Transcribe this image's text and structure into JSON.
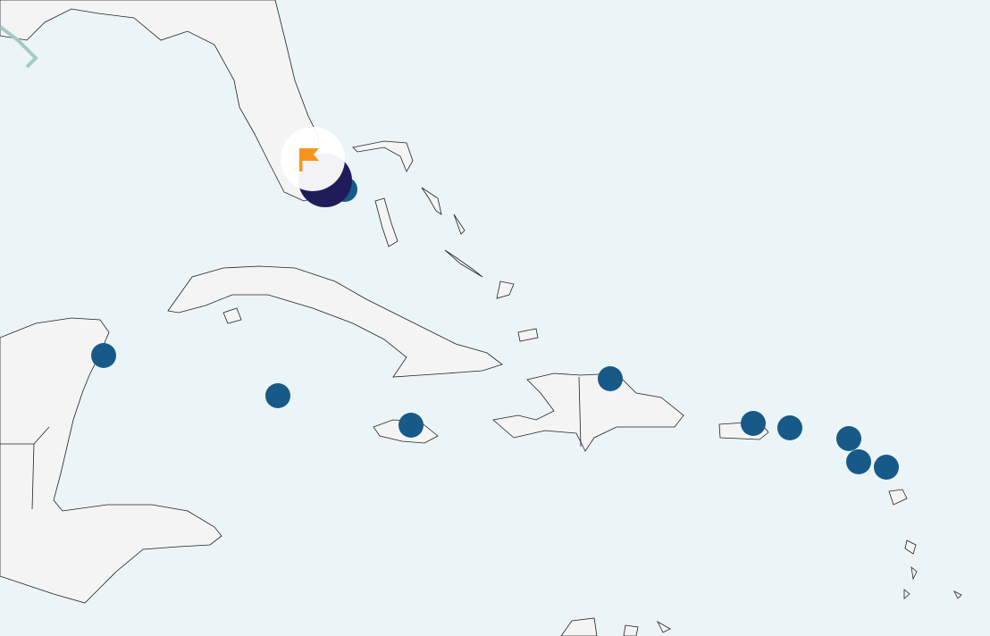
{
  "map": {
    "colors": {
      "water": "#ebf4f7",
      "land": "#f4f4f4",
      "border": "#222222",
      "marker": "#175a88",
      "selected_marker": "#201c5a",
      "flag": "#f7941d"
    },
    "markers": [
      {
        "id": "marker-florida-keys"
      },
      {
        "id": "marker-cancun"
      },
      {
        "id": "marker-cayman"
      },
      {
        "id": "marker-jamaica"
      },
      {
        "id": "marker-dominican-republic"
      },
      {
        "id": "marker-puerto-rico-west"
      },
      {
        "id": "marker-puerto-rico-east"
      },
      {
        "id": "marker-st-martin"
      },
      {
        "id": "marker-st-kitts"
      },
      {
        "id": "marker-antigua"
      }
    ],
    "selected": {
      "icon": "flag-icon"
    }
  }
}
